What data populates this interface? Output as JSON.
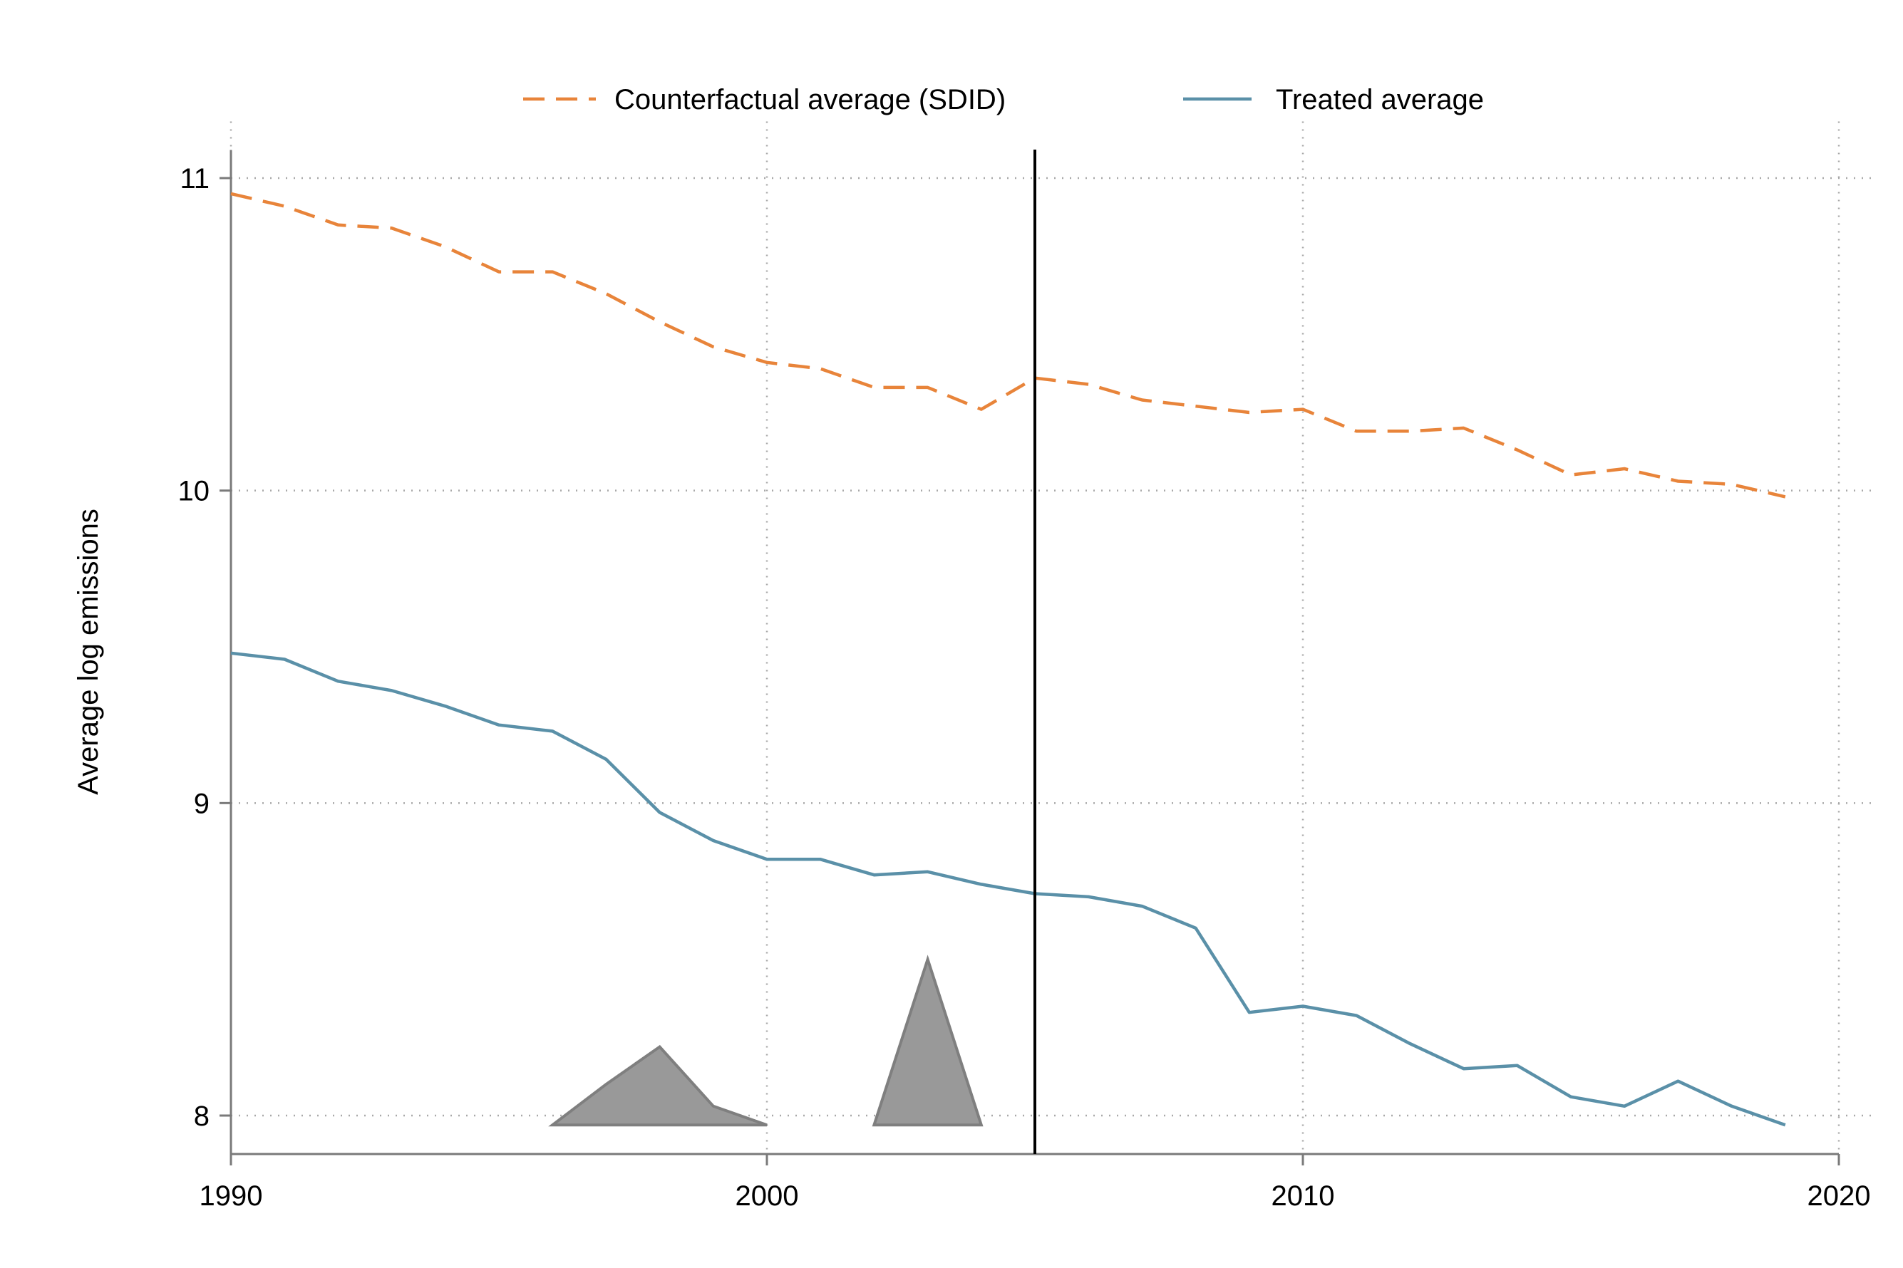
{
  "chart_data": {
    "type": "line",
    "title": "",
    "xlabel": "",
    "ylabel": "Average log emissions",
    "xlim": [
      1990,
      2020
    ],
    "ylim": [
      7.87,
      11.09
    ],
    "x_ticks": [
      1990,
      2000,
      2010,
      2020
    ],
    "y_ticks": [
      8,
      9,
      10,
      11
    ],
    "grid": true,
    "legend_position": "top",
    "treatment_year": 2005,
    "x": [
      1990,
      1991,
      1992,
      1993,
      1994,
      1995,
      1996,
      1997,
      1998,
      1999,
      2000,
      2001,
      2002,
      2003,
      2004,
      2005,
      2006,
      2007,
      2008,
      2009,
      2010,
      2011,
      2012,
      2013,
      2014,
      2015,
      2016,
      2017,
      2018,
      2019
    ],
    "series": [
      {
        "name": "Counterfactual average (SDID)",
        "color": "#e8843a",
        "style": "dashed",
        "values": [
          10.95,
          10.91,
          10.85,
          10.84,
          10.78,
          10.7,
          10.7,
          10.63,
          10.54,
          10.46,
          10.41,
          10.39,
          10.33,
          10.33,
          10.26,
          10.36,
          10.34,
          10.29,
          10.27,
          10.25,
          10.26,
          10.19,
          10.19,
          10.2,
          10.13,
          10.05,
          10.07,
          10.03,
          10.02,
          9.98
        ]
      },
      {
        "name": "Treated average",
        "color": "#5a90a8",
        "style": "solid",
        "values": [
          9.48,
          9.46,
          9.39,
          9.36,
          9.31,
          9.25,
          9.23,
          9.14,
          8.97,
          8.88,
          8.82,
          8.82,
          8.77,
          8.78,
          8.74,
          8.71,
          8.7,
          8.67,
          8.6,
          8.33,
          8.35,
          8.32,
          8.23,
          8.15,
          8.16,
          8.06,
          8.03,
          8.11,
          8.03,
          7.97
        ]
      }
    ],
    "weight_areas": {
      "color": "#999999",
      "shapes": [
        [
          [
            1996,
            7.97
          ],
          [
            1997,
            8.1
          ],
          [
            1998,
            8.22
          ],
          [
            1999,
            8.03
          ],
          [
            2000,
            7.97
          ]
        ],
        [
          [
            2002,
            7.97
          ],
          [
            2003,
            8.5
          ],
          [
            2004,
            7.97
          ]
        ]
      ]
    }
  }
}
